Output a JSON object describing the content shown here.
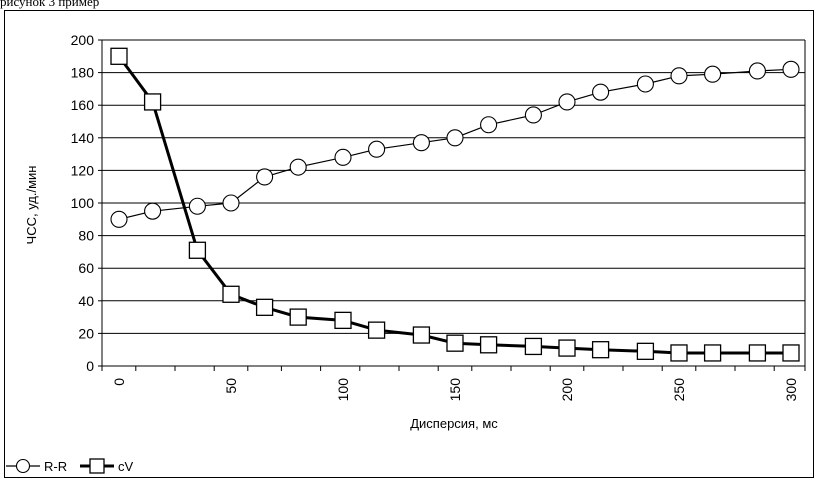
{
  "caption": "рисунок 3 пример",
  "chart_data": {
    "type": "line",
    "xlabel": "Дисперсия, мс",
    "ylabel": "ЧСС, уд./мин",
    "xlim": [
      0,
      300
    ],
    "ylim": [
      0,
      200
    ],
    "xticks": [
      "0",
      "50",
      "100",
      "150",
      "200",
      "250",
      "300"
    ],
    "yticks": [
      "0",
      "20",
      "40",
      "60",
      "80",
      "100",
      "120",
      "140",
      "160",
      "180",
      "200"
    ],
    "grid": "horizontal",
    "legend_position": "bottom-left",
    "series": [
      {
        "name": "R-R",
        "marker": "circle",
        "color": "#000000",
        "x": [
          0,
          15,
          35,
          50,
          65,
          80,
          100,
          115,
          135,
          150,
          165,
          185,
          200,
          215,
          235,
          250,
          265,
          285,
          300
        ],
        "y": [
          90,
          95,
          98,
          100,
          116,
          122,
          128,
          133,
          137,
          140,
          148,
          154,
          162,
          168,
          173,
          178,
          179,
          181,
          182
        ]
      },
      {
        "name": "cV",
        "marker": "square",
        "color": "#000000",
        "x": [
          0,
          15,
          35,
          50,
          65,
          80,
          100,
          115,
          135,
          150,
          165,
          185,
          200,
          215,
          235,
          250,
          265,
          285,
          300
        ],
        "y": [
          190,
          162,
          71,
          44,
          36,
          30,
          28,
          22,
          19,
          14,
          13,
          12,
          11,
          10,
          9,
          8,
          8,
          8,
          8
        ]
      }
    ]
  }
}
